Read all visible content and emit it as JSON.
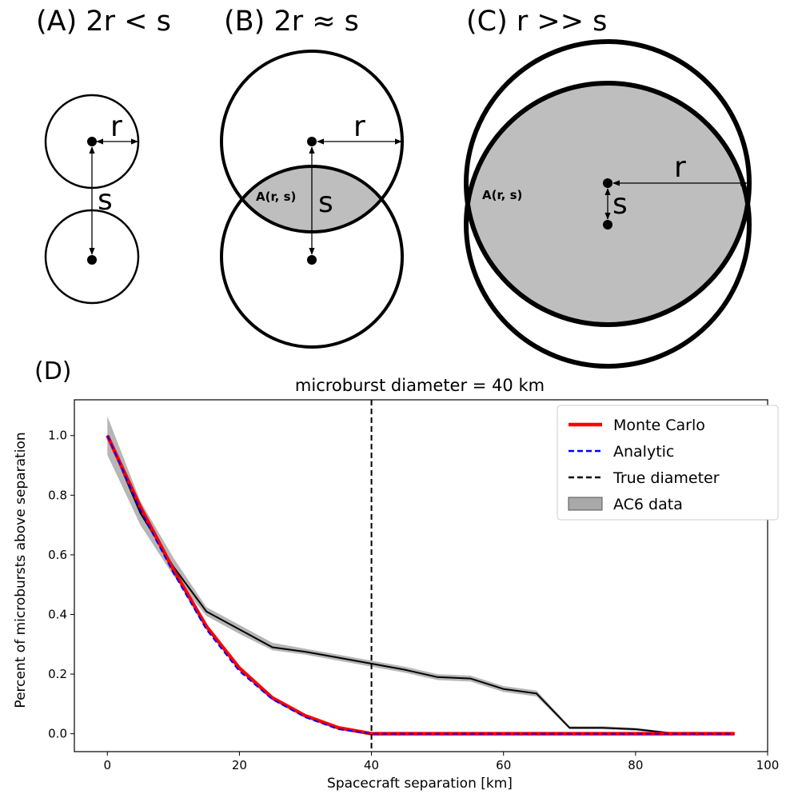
{
  "panels": {
    "a": {
      "title": "(A) 2r < s",
      "r_label": "r",
      "s_label": "s"
    },
    "b": {
      "title": "(B) 2r ≈ s",
      "r_label": "r",
      "s_label": "s",
      "area_label": "A(r, s)"
    },
    "c": {
      "title": "(C) r >> s",
      "r_label": "r",
      "s_label": "s",
      "area_label": "A(r, s)"
    },
    "d": {
      "label": "(D)"
    }
  },
  "chart_data": {
    "type": "line",
    "title": "microburst diameter = 40 km",
    "xlabel": "Spacecraft separation [km]",
    "ylabel": "Percent of microbursts above separation",
    "xlim": [
      -5,
      100
    ],
    "ylim": [
      -0.06,
      1.12
    ],
    "xticks": [
      0,
      20,
      40,
      60,
      80,
      100
    ],
    "yticks": [
      "0.0",
      "0.2",
      "0.4",
      "0.6",
      "0.8",
      "1.0"
    ],
    "legend_position": "top-right",
    "grid": false,
    "series": [
      {
        "name": "Monte Carlo",
        "color": "#ff0000",
        "style": "solid",
        "x": [
          0,
          5,
          10,
          15,
          20,
          25,
          30,
          35,
          40,
          45,
          50,
          55,
          60,
          65,
          70,
          75,
          80,
          85,
          90,
          95
        ],
        "y": [
          1.0,
          0.76,
          0.55,
          0.36,
          0.22,
          0.12,
          0.06,
          0.02,
          0.0,
          0.0,
          0.0,
          0.0,
          0.0,
          0.0,
          0.0,
          0.0,
          0.0,
          0.0,
          0.0,
          0.0
        ]
      },
      {
        "name": "Analytic",
        "color": "#0000ff",
        "style": "dashed",
        "x": [
          0,
          5,
          10,
          15,
          20,
          25,
          30,
          35,
          40,
          45,
          50,
          55,
          60,
          65,
          70,
          75,
          80,
          85,
          90,
          95
        ],
        "y": [
          1.0,
          0.75,
          0.54,
          0.35,
          0.21,
          0.115,
          0.055,
          0.015,
          0.0,
          0.0,
          0.0,
          0.0,
          0.0,
          0.0,
          0.0,
          0.0,
          0.0,
          0.0,
          0.0,
          0.0
        ]
      },
      {
        "name": "True diameter",
        "color": "#000000",
        "style": "dashed",
        "vline_x": 40
      },
      {
        "name": "AC6 data",
        "color": "#000000",
        "fill": "#a9a9a9",
        "style": "line-with-band",
        "x": [
          0,
          5,
          10,
          15,
          20,
          25,
          30,
          35,
          40,
          45,
          50,
          55,
          60,
          65,
          70,
          75,
          80,
          85,
          90
        ],
        "y": [
          1.0,
          0.74,
          0.56,
          0.41,
          0.35,
          0.29,
          0.275,
          0.255,
          0.235,
          0.215,
          0.19,
          0.185,
          0.15,
          0.135,
          0.02,
          0.02,
          0.015,
          0.003,
          0.003
        ],
        "upper": [
          1.065,
          0.78,
          0.59,
          0.425,
          0.365,
          0.305,
          0.285,
          0.265,
          0.245,
          0.225,
          0.2,
          0.195,
          0.16,
          0.145,
          0.025,
          0.025,
          0.02,
          0.006,
          0.006
        ],
        "lower": [
          0.935,
          0.7,
          0.53,
          0.395,
          0.335,
          0.28,
          0.265,
          0.245,
          0.225,
          0.205,
          0.18,
          0.175,
          0.14,
          0.125,
          0.015,
          0.015,
          0.01,
          0.0,
          0.0
        ]
      }
    ]
  }
}
